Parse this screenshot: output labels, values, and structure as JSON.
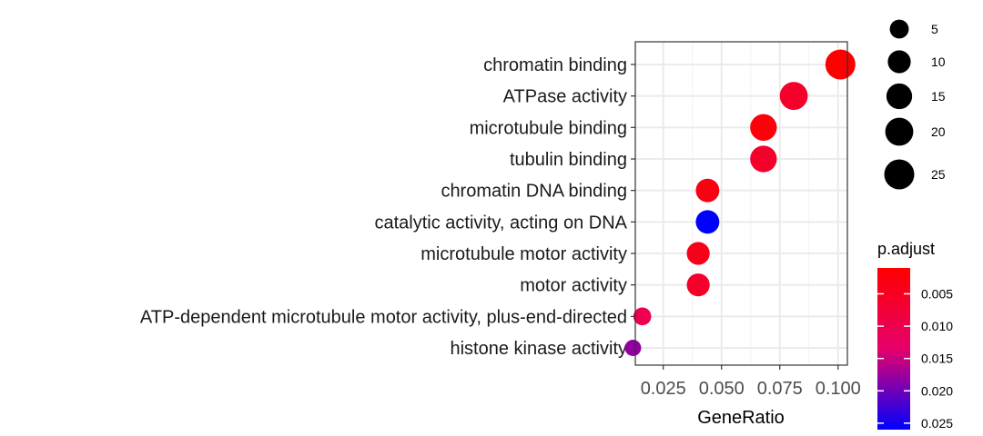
{
  "chart_data": {
    "type": "scatter",
    "xlabel": "GeneRatio",
    "xlim": [
      0.013,
      0.104
    ],
    "x_ticks": [
      0.025,
      0.05,
      0.075,
      0.1
    ],
    "x_tick_labels": [
      "0.025",
      "0.050",
      "0.075",
      "0.100"
    ],
    "categories": [
      "chromatin binding",
      "ATPase activity",
      "microtubule binding",
      "tubulin binding",
      "chromatin DNA binding",
      "catalytic activity, acting on DNA",
      "microtubule motor activity",
      "motor activity",
      "ATP-dependent microtubule motor activity, plus-end-directed",
      "histone kinase activity"
    ],
    "points": [
      {
        "term": "chromatin binding",
        "gene_ratio": 0.101,
        "count": 25,
        "p_adjust": 0.001
      },
      {
        "term": "ATPase activity",
        "gene_ratio": 0.081,
        "count": 20,
        "p_adjust": 0.006
      },
      {
        "term": "microtubule binding",
        "gene_ratio": 0.068,
        "count": 17,
        "p_adjust": 0.002
      },
      {
        "term": "tubulin binding",
        "gene_ratio": 0.068,
        "count": 17,
        "p_adjust": 0.006
      },
      {
        "term": "chromatin DNA binding",
        "gene_ratio": 0.044,
        "count": 11,
        "p_adjust": 0.003
      },
      {
        "term": "catalytic activity, acting on DNA",
        "gene_ratio": 0.044,
        "count": 11,
        "p_adjust": 0.026
      },
      {
        "term": "microtubule motor activity",
        "gene_ratio": 0.04,
        "count": 10,
        "p_adjust": 0.004
      },
      {
        "term": "motor activity",
        "gene_ratio": 0.04,
        "count": 10,
        "p_adjust": 0.006
      },
      {
        "term": "ATP-dependent microtubule motor activity, plus-end-directed",
        "gene_ratio": 0.016,
        "count": 4,
        "p_adjust": 0.01
      },
      {
        "term": "histone kinase activity",
        "gene_ratio": 0.012,
        "count": 3,
        "p_adjust": 0.018
      }
    ],
    "size_legend": {
      "values": [
        5,
        10,
        15,
        20,
        25
      ],
      "labels": [
        "5",
        "10",
        "15",
        "20",
        "25"
      ]
    },
    "color_legend": {
      "title": "p.adjust",
      "low_color": "#ff0000",
      "high_color": "#0000ff",
      "range": [
        0.001,
        0.026
      ],
      "breaks": [
        0.005,
        0.01,
        0.015,
        0.02,
        0.025
      ],
      "labels": [
        "0.005",
        "0.010",
        "0.015",
        "0.020",
        "0.025"
      ]
    },
    "grid": true,
    "legend_position": "right"
  }
}
